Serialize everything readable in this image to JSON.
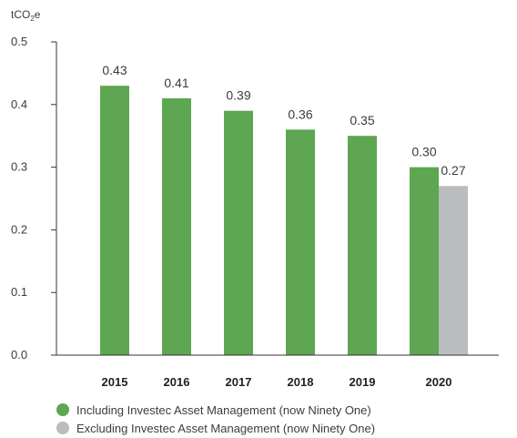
{
  "chart_data": {
    "type": "bar",
    "unit": {
      "main": "tCO",
      "sub": "2",
      "tail": "e"
    },
    "categories": [
      "2015",
      "2016",
      "2017",
      "2018",
      "2019",
      "2020"
    ],
    "series": [
      {
        "name": "Including Investec Asset Management (now Ninety One)",
        "color": "#5ea651",
        "values": [
          0.43,
          0.41,
          0.39,
          0.36,
          0.35,
          0.3
        ],
        "labels": [
          "0.43",
          "0.41",
          "0.39",
          "0.36",
          "0.35",
          "0.30"
        ]
      },
      {
        "name": "Excluding Investec Asset Management (now Ninety One)",
        "color": "#bbbcbe",
        "values": [
          null,
          null,
          null,
          null,
          null,
          0.27
        ],
        "labels": [
          null,
          null,
          null,
          null,
          null,
          "0.27"
        ]
      }
    ],
    "ylim": [
      0,
      0.5
    ],
    "yticks": [
      "0.0",
      "0.1",
      "0.2",
      "0.3",
      "0.4",
      "0.5"
    ],
    "legend_position": "bottom-left",
    "grid": false
  }
}
